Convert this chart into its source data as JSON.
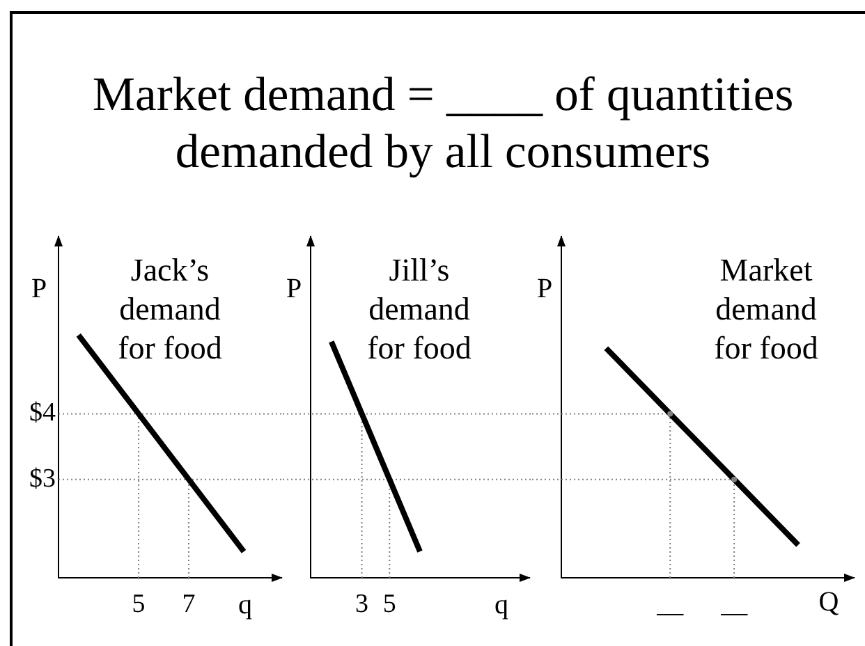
{
  "chart_data": [
    {
      "type": "line",
      "title": "Market demand = ____ of quantities demanded by all consumers",
      "subtitle": "Jack’s demand for food",
      "xlabel": "q",
      "ylabel": "P",
      "x": [
        2.6,
        5,
        7,
        9.2
      ],
      "series": [
        {
          "color": "#000000",
          "values": [
            5.2,
            4,
            3,
            1.9
          ]
        }
      ],
      "xlim": [
        1.8,
        10.7
      ],
      "ylim": [
        1.5,
        6.7
      ],
      "xticks": [
        5,
        7
      ],
      "yticks": [
        {
          "value": 3,
          "label": "$3"
        },
        {
          "value": 4,
          "label": "$4"
        }
      ],
      "ref_lines": [
        {
          "axis": "y",
          "value": 4,
          "color": "#808080",
          "line_style": "dotted"
        },
        {
          "axis": "y",
          "value": 3,
          "color": "#808080",
          "line_style": "dotted"
        },
        {
          "axis": "x",
          "value": 5,
          "color": "#808080",
          "line_style": "dotted"
        },
        {
          "axis": "x",
          "value": 7,
          "color": "#808080",
          "line_style": "dotted"
        }
      ]
    },
    {
      "type": "line",
      "subtitle": "Jill’s demand for food",
      "xlabel": "q",
      "ylabel": "P",
      "x": [
        0.8,
        3,
        5,
        7.2
      ],
      "series": [
        {
          "color": "#000000",
          "values": [
            5.1,
            4,
            3,
            1.9
          ]
        }
      ],
      "xlim": [
        -0.7,
        15.1
      ],
      "ylim": [
        1.5,
        6.7
      ],
      "xticks": [
        3,
        5
      ],
      "tick_labels": "x",
      "ref_lines": [
        {
          "axis": "y",
          "value": 4,
          "color": "#808080",
          "line_style": "dotted"
        },
        {
          "axis": "y",
          "value": 3,
          "color": "#808080",
          "line_style": "dotted"
        },
        {
          "axis": "x",
          "value": 3,
          "color": "#808080",
          "line_style": "dotted"
        },
        {
          "axis": "x",
          "value": 5,
          "color": "#808080",
          "line_style": "dotted"
        }
      ]
    },
    {
      "type": "line",
      "subtitle": "Market demand for food",
      "xlabel": "Q",
      "ylabel": "P",
      "categories": [
        null,
        "__",
        "__",
        null
      ],
      "series": [
        {
          "color": "#000000",
          "values": [
            5,
            4,
            3,
            2
          ]
        },
        {
          "type": "lollipop",
          "color": "#808080",
          "line_style": "dotted",
          "marker": "circle",
          "values": [
            null,
            4,
            3,
            null
          ]
        }
      ],
      "ylim": [
        1.5,
        6.7
      ],
      "tick_labels": "x",
      "ref_lines": [
        {
          "axis": "y",
          "value": 4,
          "color": "#808080",
          "line_style": "dotted"
        },
        {
          "axis": "y",
          "value": 3,
          "color": "#808080",
          "line_style": "dotted"
        }
      ]
    }
  ]
}
